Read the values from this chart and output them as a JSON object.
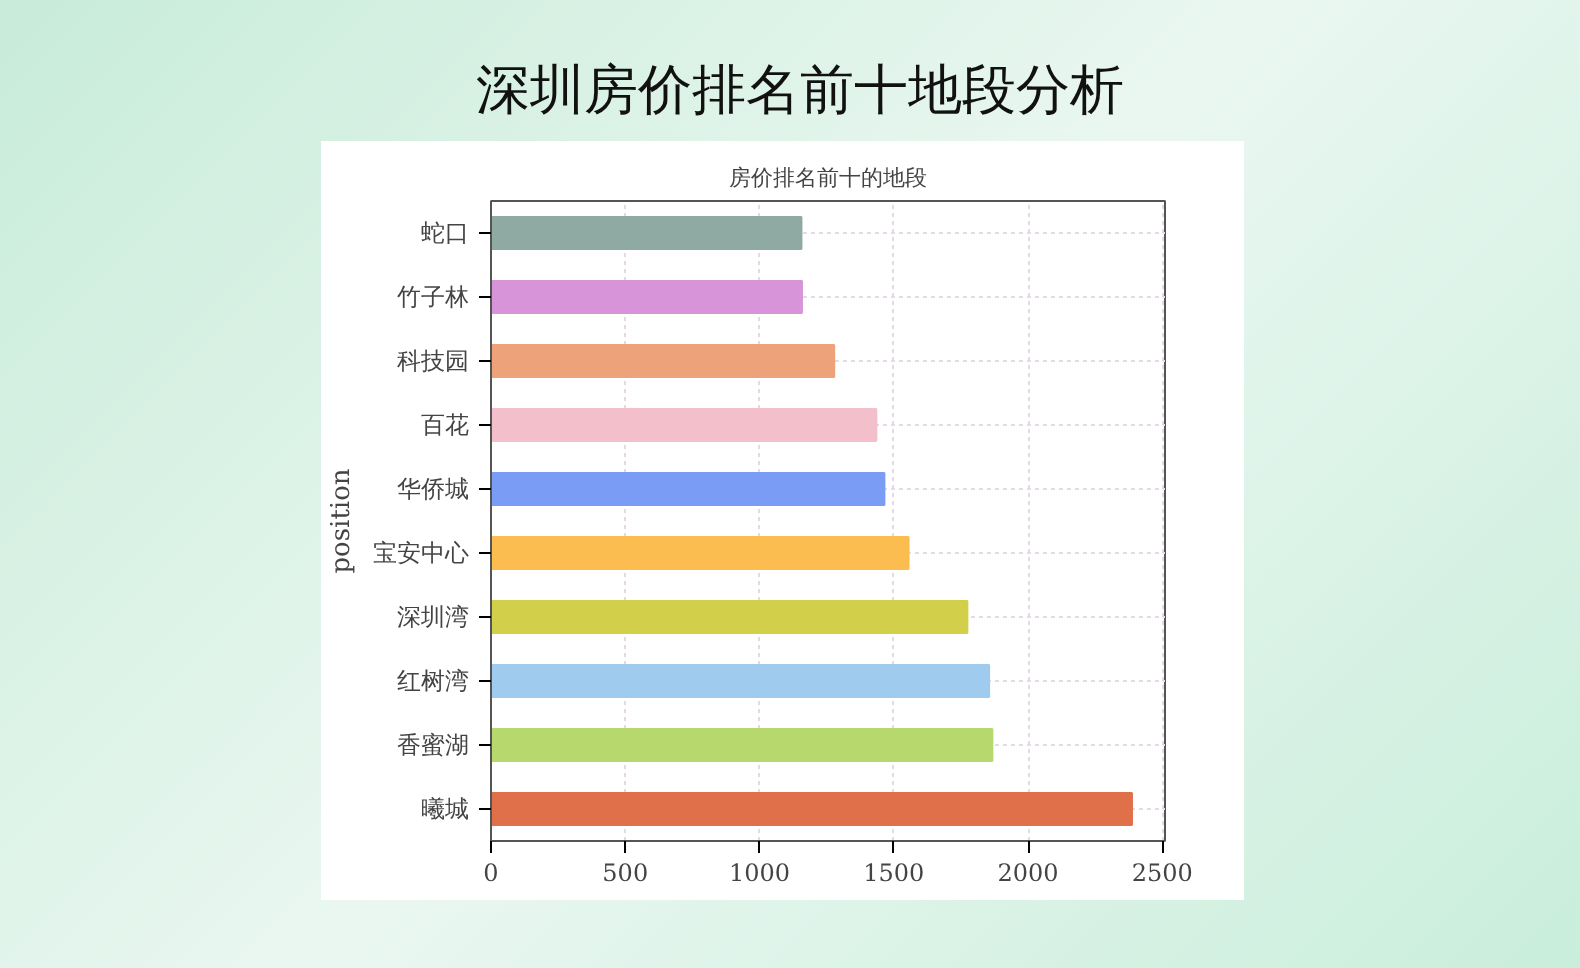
{
  "chart_data": {
    "type": "bar",
    "orientation": "horizontal",
    "title": "深圳房价排名前十地段分析",
    "subtitle": "房价排名前十的地段",
    "ylabel": "position",
    "categories": [
      "蛇口",
      "竹子林",
      "科技园",
      "百花",
      "华侨城",
      "宝安中心",
      "深圳湾",
      "红树湾",
      "香蜜湖",
      "曦城"
    ],
    "values": [
      1156,
      1158,
      1278,
      1435,
      1465,
      1555,
      1774,
      1855,
      1867,
      2387
    ],
    "colors": [
      "#8fa9a3",
      "#d894d8",
      "#eea27a",
      "#f2bfca",
      "#7b9cf5",
      "#fbbd4f",
      "#d2d04a",
      "#9ecbee",
      "#b6d86c",
      "#e0704a"
    ],
    "xlim": [
      0,
      2510
    ],
    "xticks": [
      0,
      500,
      1000,
      1500,
      2000,
      2500
    ],
    "grid": true
  }
}
